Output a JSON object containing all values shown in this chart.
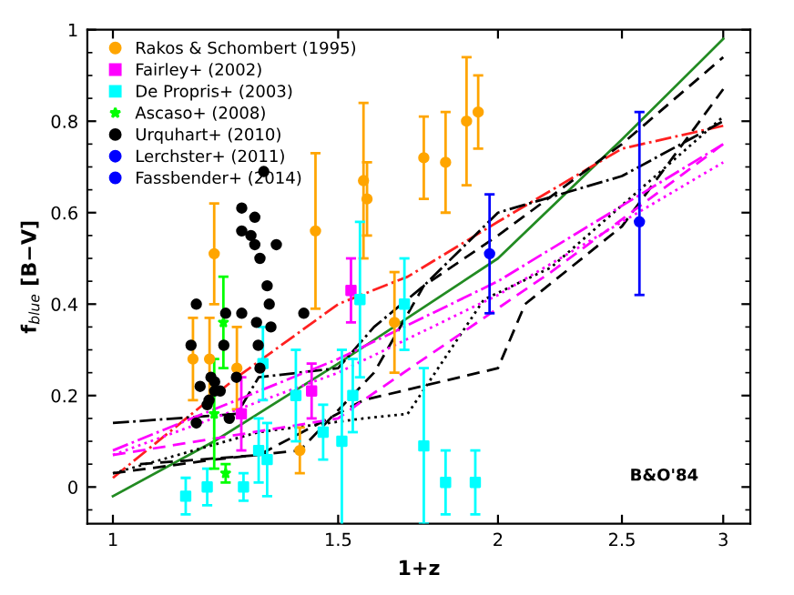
{
  "chart_data": {
    "type": "scatter",
    "xlabel": "1+z",
    "ylabel": "f$_{blue}$ [B−V]",
    "log": "x",
    "xlim": [
      0.955,
      3.15
    ],
    "ylim": [
      -0.08,
      1.0
    ],
    "xticks": [
      1,
      1.5,
      2,
      2.5,
      3
    ],
    "yticks": [
      0,
      0.2,
      0.4,
      0.6,
      0.8,
      1
    ],
    "grid": false,
    "legend": "top left",
    "annotations": [
      "B&O'84"
    ],
    "series": [
      {
        "type": "line",
        "color": "#228b22",
        "line_style": "solid",
        "x": [
          1,
          1.2,
          1.5,
          2,
          2.5,
          3
        ],
        "values": [
          -0.02,
          0.1,
          0.27,
          0.5,
          0.76,
          0.98
        ]
      },
      {
        "type": "line",
        "color": "#ff2020",
        "line_style": "dashdot",
        "x": [
          1,
          1.25,
          1.5,
          1.7,
          2,
          2.5,
          3
        ],
        "values": [
          0.02,
          0.24,
          0.4,
          0.46,
          0.58,
          0.74,
          0.79
        ]
      },
      {
        "type": "line",
        "color": "#000000",
        "line_style": "dashdot",
        "x": [
          1,
          1.25,
          1.3,
          1.5,
          1.6,
          1.75,
          2,
          2.5,
          3
        ],
        "values": [
          0.14,
          0.16,
          0.24,
          0.26,
          0.35,
          0.44,
          0.6,
          0.68,
          0.8
        ]
      },
      {
        "type": "line",
        "color": "#000000",
        "line_style": "dashed",
        "x": [
          1,
          1.2,
          1.4,
          1.6,
          1.75,
          2,
          2.5,
          3
        ],
        "values": [
          0.03,
          0.06,
          0.08,
          0.25,
          0.44,
          0.55,
          0.75,
          0.94
        ]
      },
      {
        "type": "line",
        "color": "#000000",
        "line_style": "dashed",
        "x": [
          1.05,
          1.3,
          1.57,
          2,
          2.1,
          2.5,
          3
        ],
        "values": [
          0.05,
          0.07,
          0.19,
          0.26,
          0.4,
          0.57,
          0.87
        ]
      },
      {
        "type": "line",
        "color": "#000000",
        "line_style": "dotted",
        "x": [
          1,
          1.3,
          1.57,
          1.7,
          1.95,
          2.2,
          3
        ],
        "values": [
          0.03,
          0.12,
          0.15,
          0.16,
          0.41,
          0.48,
          0.81
        ]
      },
      {
        "type": "line",
        "color": "#ff00ff",
        "line_style": "dashdot",
        "x": [
          1,
          1.5,
          2,
          3
        ],
        "values": [
          0.08,
          0.28,
          0.45,
          0.75
        ]
      },
      {
        "type": "line",
        "color": "#ff00ff",
        "line_style": "dotted",
        "x": [
          1,
          1.5,
          2,
          3
        ],
        "values": [
          0.07,
          0.25,
          0.42,
          0.71
        ]
      },
      {
        "type": "line",
        "color": "#ff00ff",
        "line_style": "dashed",
        "x": [
          1,
          1.5,
          1.57,
          2.2,
          3
        ],
        "values": [
          0.07,
          0.15,
          0.19,
          0.47,
          0.75
        ]
      },
      {
        "name": "Rakos & Schombert (1995)",
        "color": "#ffa500",
        "marker": "circle",
        "x": [
          1.2,
          1.19,
          1.25,
          1.155,
          1.44,
          1.57,
          1.58,
          1.75,
          1.82,
          1.89,
          1.93,
          1.66,
          1.4
        ],
        "values": [
          0.51,
          0.28,
          0.26,
          0.28,
          0.56,
          0.67,
          0.63,
          0.72,
          0.71,
          0.8,
          0.82,
          0.36,
          0.08
        ],
        "errors": [
          0.11,
          0.09,
          0.09,
          0.09,
          0.17,
          0.17,
          0.08,
          0.09,
          0.11,
          0.14,
          0.08,
          0.11,
          0.05
        ]
      },
      {
        "name": "Fairley+ (2002)",
        "color": "#ff00ff",
        "marker": "square",
        "x": [
          1.26,
          1.43,
          1.535
        ],
        "values": [
          0.16,
          0.21,
          0.43
        ],
        "errors": [
          0.08,
          0.06,
          0.07
        ]
      },
      {
        "name": "De Propris+ (2003)",
        "color": "#00ffff",
        "marker": "square",
        "x": [
          1.14,
          1.185,
          1.265,
          1.3,
          1.31,
          1.32,
          1.39,
          1.46,
          1.51,
          1.54,
          1.56,
          1.69,
          1.75,
          1.82,
          1.92
        ],
        "values": [
          -0.02,
          0.0,
          0.0,
          0.08,
          0.27,
          0.06,
          0.2,
          0.12,
          0.1,
          0.2,
          0.41,
          0.4,
          0.09,
          0.01,
          0.01
        ],
        "errors": [
          0.04,
          0.04,
          0.03,
          0.07,
          0.08,
          0.08,
          0.1,
          0.06,
          0.2,
          0.08,
          0.17,
          0.1,
          0.17,
          0.07,
          0.07
        ]
      },
      {
        "name": "Ascaso+ (2008)",
        "color": "#00ff00",
        "marker": "star",
        "x": [
          1.22,
          1.225,
          1.2
        ],
        "values": [
          0.36,
          0.03,
          0.16
        ],
        "errors": [
          0.1,
          0.02,
          0.12
        ]
      },
      {
        "name": "Urquhart+ (2010)",
        "color": "#000000",
        "marker": "circle",
        "x": [
          1.261,
          1.261,
          1.291,
          1.282,
          1.291,
          1.303,
          1.342,
          1.312,
          1.32,
          1.151,
          1.162,
          1.17,
          1.185,
          1.189,
          1.193,
          1.201,
          1.201,
          1.213,
          1.221,
          1.225,
          1.233,
          1.249,
          1.261,
          1.295,
          1.299,
          1.303,
          1.325,
          1.329,
          1.41,
          1.162
        ],
        "values": [
          0.61,
          0.56,
          0.59,
          0.55,
          0.53,
          0.5,
          0.53,
          0.69,
          0.44,
          0.31,
          0.4,
          0.22,
          0.18,
          0.19,
          0.24,
          0.23,
          0.21,
          0.21,
          0.31,
          0.38,
          0.15,
          0.24,
          0.38,
          0.36,
          0.31,
          0.26,
          0.4,
          0.35,
          0.38,
          0.14
        ]
      },
      {
        "name": "Lerchster+ (2011)",
        "color": "#0000ff",
        "marker": "circle",
        "x": [
          1.97
        ],
        "values": [
          0.51
        ],
        "errors": [
          0.13
        ]
      },
      {
        "name": "Fassbender+ (2014)",
        "color": "#0000ff",
        "marker": "circle",
        "x": [
          2.58
        ],
        "values": [
          0.58
        ],
        "errors": [
          [
            0.42,
            0.82
          ]
        ]
      }
    ]
  }
}
